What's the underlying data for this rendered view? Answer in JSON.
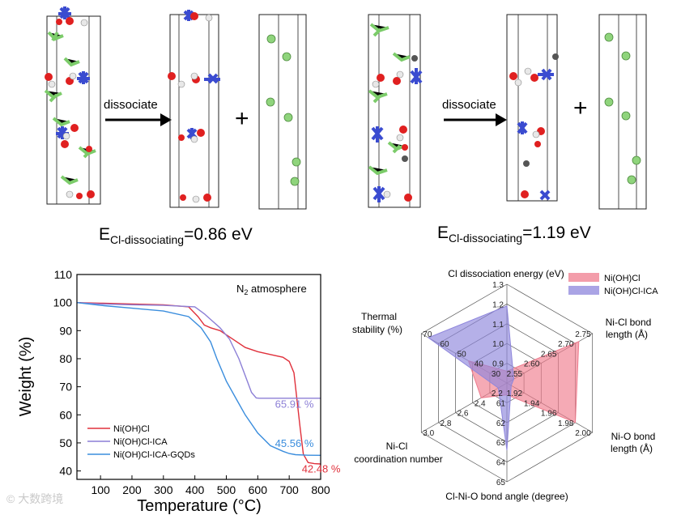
{
  "top": {
    "left": {
      "arrow_label": "dissociate",
      "energy_prefix": "E",
      "energy_sub": "Cl-dissociating",
      "energy_value": "=0.86 eV"
    },
    "right": {
      "arrow_label": "dissociate",
      "energy_prefix": "E",
      "energy_sub": "Cl-dissociating",
      "energy_value": "=1.19 eV"
    },
    "plus": "+"
  },
  "tga": {
    "chart_data": {
      "type": "line",
      "title": "",
      "annotation": "N2 atmosphere",
      "xlabel": "Temperature (°C)",
      "ylabel": "Weight (%)",
      "xlim": [
        25,
        800
      ],
      "ylim": [
        37,
        110
      ],
      "xticks": [
        100,
        200,
        300,
        400,
        500,
        600,
        700,
        800
      ],
      "yticks": [
        40,
        50,
        60,
        70,
        80,
        90,
        100,
        110
      ],
      "series": [
        {
          "name": "Ni(OH)Cl",
          "color": "#e0303b",
          "x": [
            25,
            100,
            200,
            300,
            380,
            410,
            430,
            450,
            480,
            520,
            560,
            600,
            640,
            680,
            700,
            715,
            725,
            735,
            745,
            760,
            780,
            800
          ],
          "y": [
            100,
            99.8,
            99.5,
            99.2,
            98.5,
            95,
            92,
            91,
            90,
            87,
            84,
            82.5,
            81.5,
            80.5,
            79,
            75,
            65,
            55,
            46,
            43,
            42.6,
            42.48
          ]
        },
        {
          "name": "Ni(OH)Cl-ICA",
          "color": "#8c7fd6",
          "x": [
            25,
            100,
            200,
            300,
            400,
            430,
            450,
            480,
            510,
            540,
            560,
            580,
            595,
            605,
            650,
            700,
            750,
            800
          ],
          "y": [
            100,
            99.5,
            99.2,
            99,
            98.5,
            96,
            94,
            91,
            87,
            80,
            74,
            68,
            66,
            65.91,
            65.91,
            65.91,
            65.91,
            65.91
          ]
        },
        {
          "name": "Ni(OH)Cl-ICA-GQDs",
          "color": "#3a8ddd",
          "x": [
            25,
            100,
            200,
            300,
            380,
            420,
            450,
            470,
            500,
            530,
            560,
            600,
            640,
            680,
            700,
            720,
            760,
            800
          ],
          "y": [
            100,
            99,
            98,
            97,
            95,
            91,
            86,
            80,
            72,
            66,
            60,
            53.5,
            49,
            47,
            46.2,
            45.8,
            45.6,
            45.56
          ]
        }
      ],
      "data_labels": [
        {
          "text": "65.91 %",
          "color": "#8c7fd6",
          "x": 655,
          "y": 62.5
        },
        {
          "text": "45.56 %",
          "color": "#3a8ddd",
          "x": 655,
          "y": 48.5
        },
        {
          "text": "42.48 %",
          "color": "#e0303b",
          "x": 740,
          "y": 39.5
        }
      ]
    },
    "annotation_main": "N",
    "annotation_sub": "2",
    "annotation_tail": " atmosphere",
    "ylabel": "Weight (%)",
    "xlabel": "Temperature (°C)",
    "data_labels": [
      "65.91 %",
      "45.56 %",
      "42.48 %"
    ]
  },
  "radar": {
    "chart_data": {
      "type": "radar",
      "axes": [
        {
          "name": "Cl dissociation energy (eV)",
          "ticks": [
            "0.9",
            "1.0",
            "1.1",
            "1.2",
            "1.3"
          ],
          "min": 0.8,
          "max": 1.3
        },
        {
          "name": "Ni-Cl bond length (Å)",
          "ticks": [
            "2.55",
            "2.60",
            "2.65",
            "2.70",
            "2.75"
          ],
          "min": 2.5,
          "max": 2.75
        },
        {
          "name": "Ni-O bond length (Å)",
          "ticks": [
            "1.92",
            "1.94",
            "1.96",
            "1.98",
            "2.00"
          ],
          "min": 1.9,
          "max": 2.0
        },
        {
          "name": "Cl-Ni-O bond angle (degree)",
          "ticks": [
            "61",
            "62",
            "63",
            "64",
            "65"
          ],
          "min": 60,
          "max": 65
        },
        {
          "name": "Ni-Cl coordination number",
          "ticks": [
            "2.2",
            "2.4",
            "2.6",
            "2.8",
            "3.0"
          ],
          "min": 2.0,
          "max": 3.0
        },
        {
          "name": "Thermal stability (%)",
          "ticks": [
            "30",
            "40",
            "50",
            "60",
            "70"
          ],
          "min": 20,
          "max": 70
        }
      ],
      "series": [
        {
          "name": "Ni(OH)Cl",
          "color": "#ef7c8e",
          "values": [
            0.86,
            2.71,
            1.98,
            60.6,
            2.3,
            42.48
          ]
        },
        {
          "name": "Ni(OH)Cl-ICA",
          "color": "#8e86dc",
          "values": [
            1.19,
            2.52,
            1.905,
            63.4,
            2.1,
            65.91
          ]
        }
      ]
    },
    "labels": {
      "top": "Cl dissociation energy (eV)",
      "ur_1": "Ni-Cl bond",
      "ur_2": "length (Å)",
      "lr_1": "Ni-O bond",
      "lr_2": "length (Å)",
      "bottom": "Cl-Ni-O bond angle (degree)",
      "ll_1": "Ni-Cl",
      "ll_2": "coordination number",
      "ul_1": "Thermal",
      "ul_2": "stability (%)"
    }
  },
  "watermark": "© 大数跨境"
}
